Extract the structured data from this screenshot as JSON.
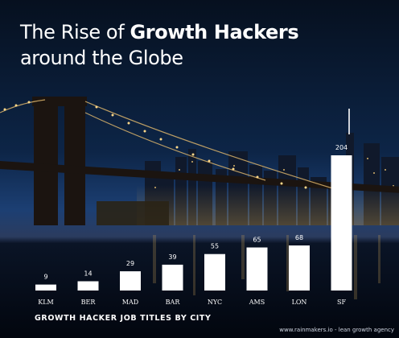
{
  "heading": {
    "line1_prefix": "The Rise of ",
    "line1_bold": "Growth Hackers",
    "line2": "around the Globe"
  },
  "chart_data": {
    "type": "bar",
    "title": "The Rise of Growth Hackers around the Globe",
    "xlabel": "GROWTH HACKER JOB TITLES BY CITY",
    "ylabel": "",
    "categories": [
      "KLM",
      "BER",
      "MAD",
      "BAR",
      "NYC",
      "AMS",
      "LON",
      "SF"
    ],
    "values": [
      9,
      14,
      29,
      39,
      55,
      65,
      68,
      204
    ],
    "ylim": [
      0,
      210
    ],
    "grid": false,
    "legend": "none"
  },
  "caption": "GROWTH HACKER JOB TITLES BY CITY",
  "footer": "www.rainmakers.io - lean growth agency",
  "colors": {
    "bar": "#ffffff",
    "sky_top": "#06101f",
    "sky_mid": "#143a6e",
    "horizon": "#3b4f7a",
    "water": "#020812",
    "text": "#ffffff"
  }
}
